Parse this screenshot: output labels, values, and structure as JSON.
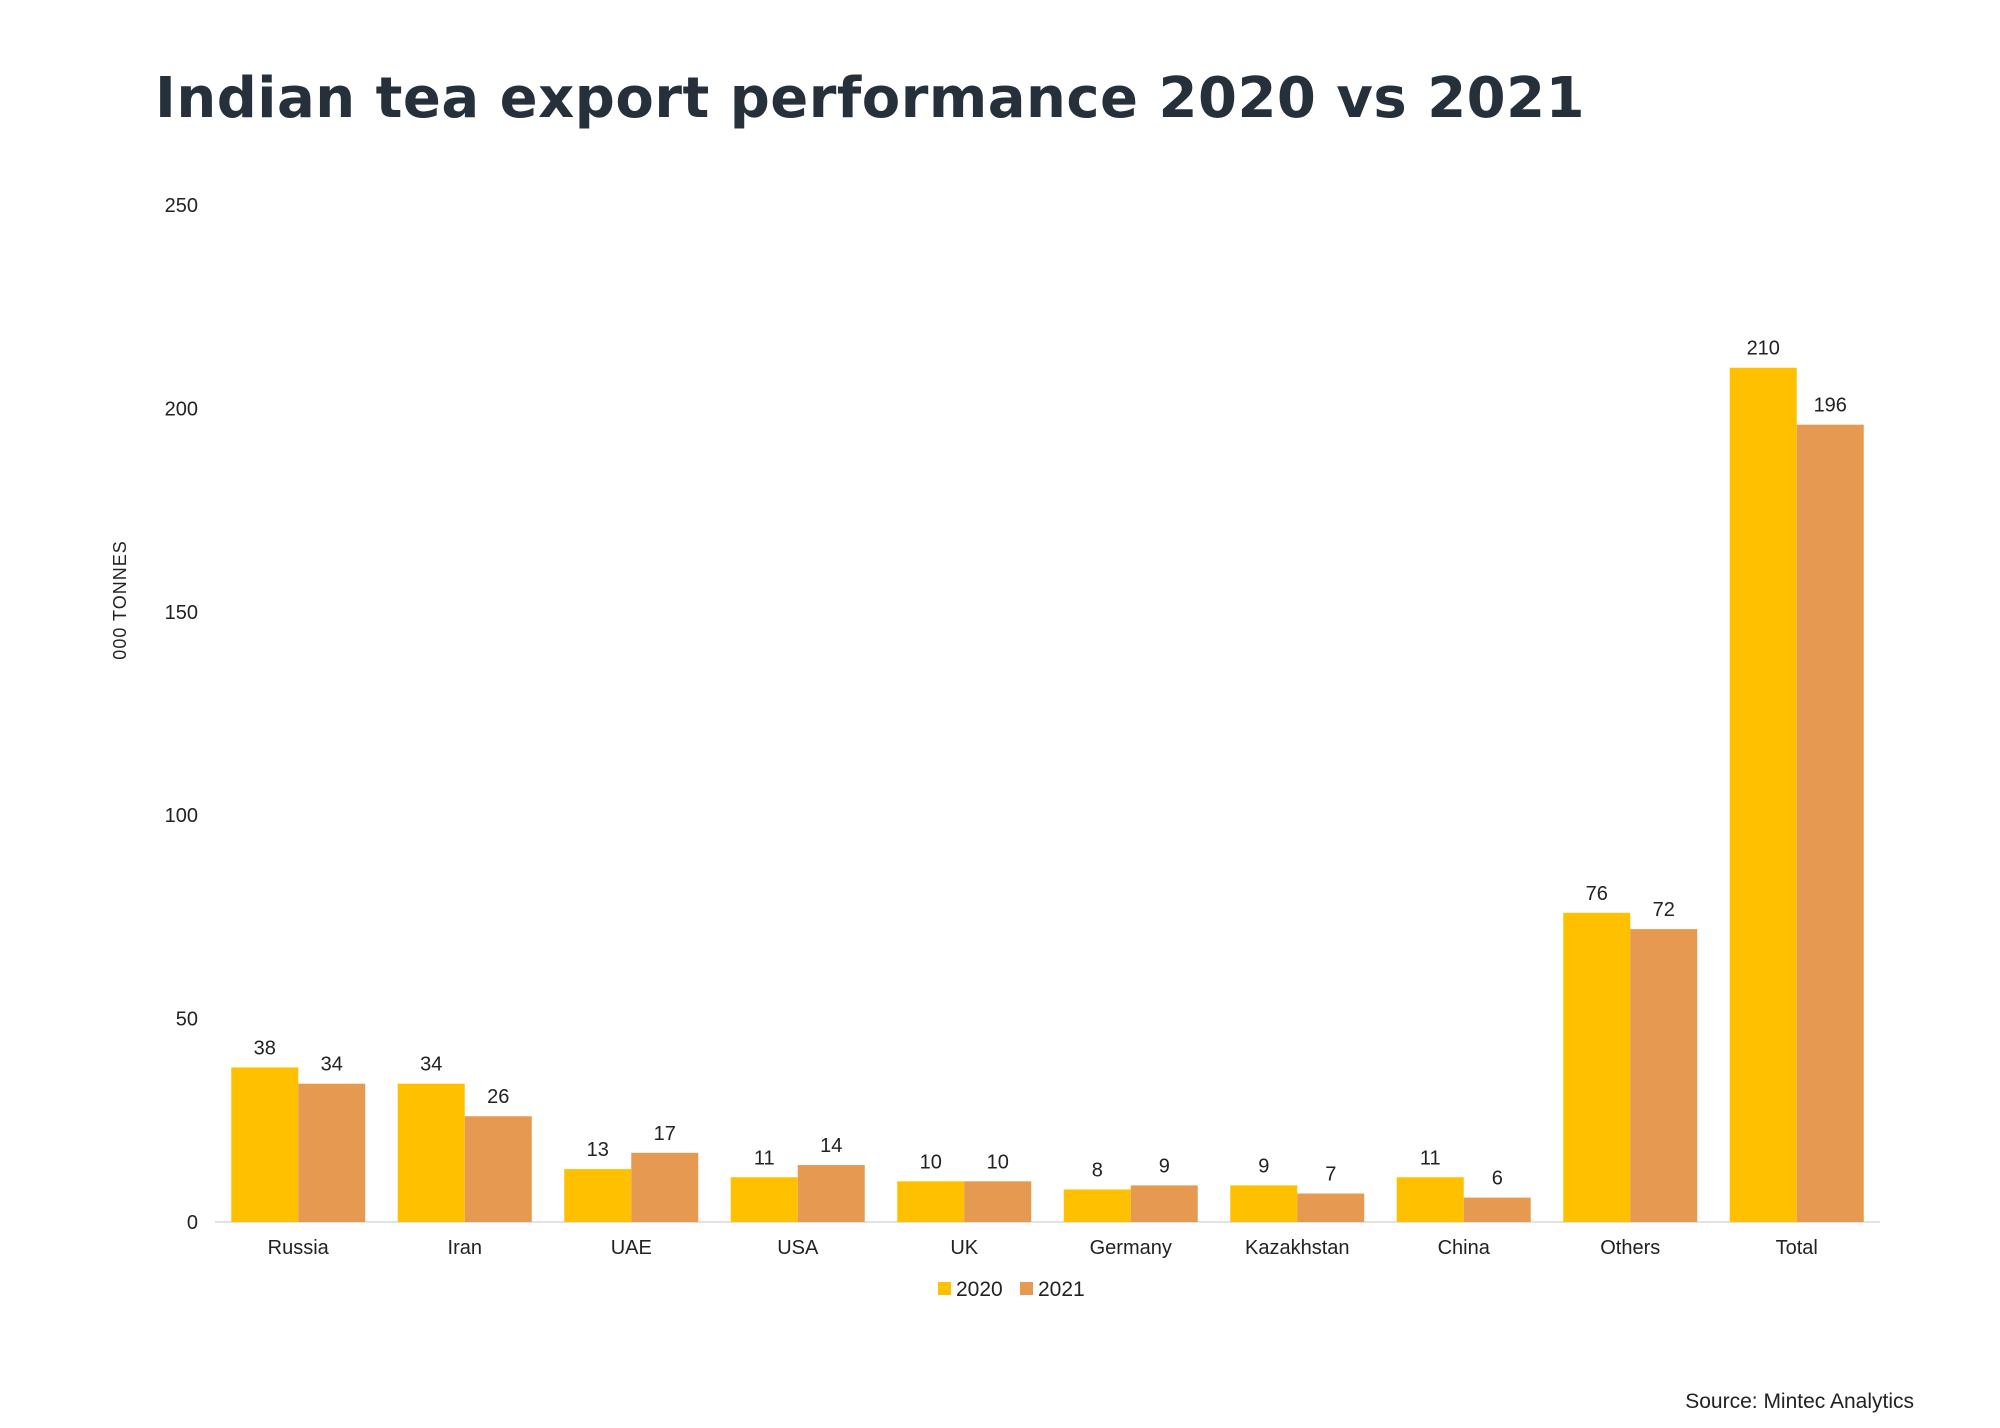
{
  "colors": {
    "series_2020": "#FFC000",
    "series_2021": "#E69A51",
    "title": "#26303b",
    "baseline": "#d9d9d9"
  },
  "chart_data": {
    "type": "bar",
    "title": "Indian tea export performance 2020 vs 2021",
    "xlabel": "",
    "ylabel": "000 TONNES",
    "ylim": [
      0,
      250
    ],
    "yticks": [
      0,
      50,
      100,
      150,
      200,
      250
    ],
    "grid": false,
    "legend": "bottom-center",
    "categories": [
      "Russia",
      "Iran",
      "UAE",
      "USA",
      "UK",
      "Germany",
      "Kazakhstan",
      "China",
      "Others",
      "Total"
    ],
    "series": [
      {
        "name": "2020",
        "values": [
          38,
          34,
          13,
          11,
          10,
          8,
          9,
          11,
          76,
          210
        ]
      },
      {
        "name": "2021",
        "values": [
          34,
          26,
          17,
          14,
          10,
          9,
          7,
          6,
          72,
          196
        ]
      }
    ]
  },
  "source": "Source: Mintec Analytics"
}
